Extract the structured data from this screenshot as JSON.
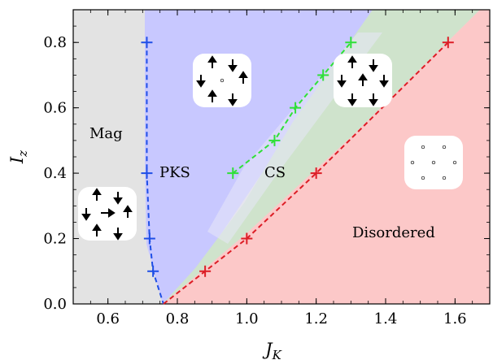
{
  "chart_data": {
    "type": "line",
    "title": "",
    "xlabel": "J",
    "xlabel_sub": "K",
    "ylabel": "I",
    "ylabel_sub": "z",
    "xlim": [
      0.5,
      1.7
    ],
    "ylim": [
      0.0,
      0.9
    ],
    "x_ticks": [
      0.6,
      0.8,
      1.0,
      1.2,
      1.4,
      1.6
    ],
    "x_tick_labels": [
      "0.6",
      "0.8",
      "1.0",
      "1.2",
      "1.4",
      "1.6"
    ],
    "y_ticks": [
      0.0,
      0.2,
      0.4,
      0.6,
      0.8
    ],
    "y_tick_labels": [
      "0.0",
      "0.2",
      "0.4",
      "0.6",
      "0.8"
    ],
    "grid": false,
    "legend": "none",
    "regions": [
      {
        "label": "Mag",
        "color": "#e3e3e3"
      },
      {
        "label": "PKS",
        "color": "#c8c8ff"
      },
      {
        "label": "CS",
        "color": "#cfe3cc"
      },
      {
        "label": "Disordered",
        "color": "#fcc8c8"
      }
    ],
    "series": [
      {
        "color": "#1f4fe6",
        "x": [
          0.712,
          0.712,
          0.72,
          0.73,
          0.76
        ],
        "y": [
          0.8,
          0.4,
          0.2,
          0.1,
          0.0
        ],
        "markers": [
          true,
          true,
          true,
          true,
          false
        ]
      },
      {
        "color": "#2fe038",
        "x": [
          0.96,
          1.08,
          1.14,
          1.22,
          1.3
        ],
        "y": [
          0.4,
          0.5,
          0.6,
          0.7,
          0.8
        ],
        "markers": [
          true,
          true,
          true,
          true,
          true
        ]
      },
      {
        "color": "#dc1e26",
        "x": [
          0.76,
          0.88,
          1.0,
          1.2,
          1.58
        ],
        "y": [
          0.0,
          0.1,
          0.2,
          0.4,
          0.8
        ],
        "markers": [
          false,
          true,
          true,
          true,
          true
        ]
      }
    ]
  }
}
